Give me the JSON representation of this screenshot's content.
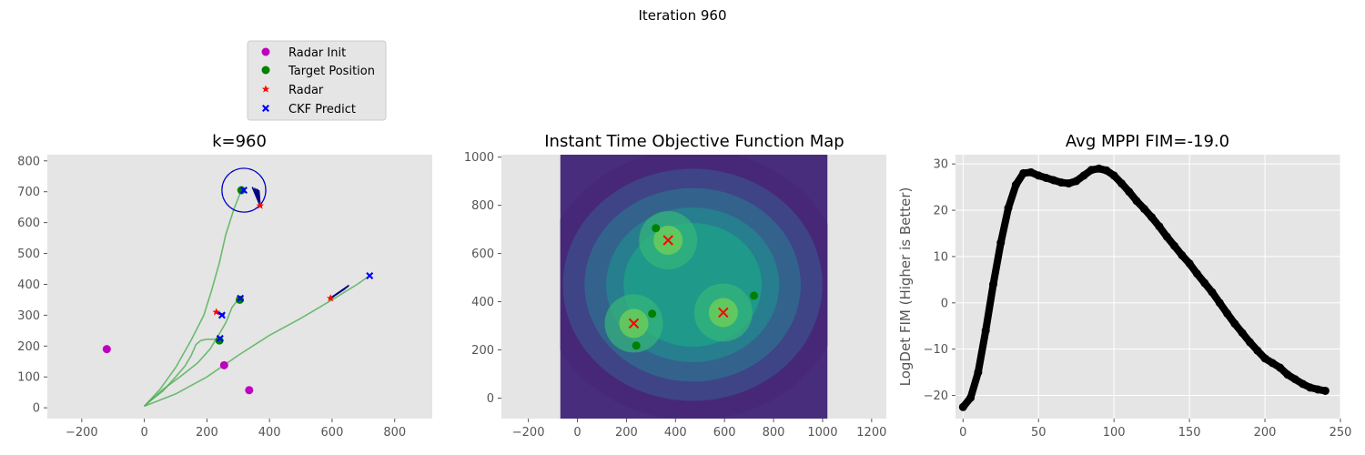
{
  "figure": {
    "suptitle": "Iteration 960"
  },
  "colors": {
    "axes_bg": "#e5e5e5",
    "grid": "#ffffff",
    "tick_text": "#555555",
    "radar_init": "#bf00bf",
    "target": "#008000",
    "radar": "#ff0000",
    "ckf": "#0000ff",
    "path": "#4caf50",
    "navy": "#000080",
    "fim": "#000000"
  },
  "legend": {
    "entries": [
      {
        "label": "Radar Init",
        "marker": "circle",
        "color": "#bf00bf"
      },
      {
        "label": "Target Position",
        "marker": "circle",
        "color": "#008000"
      },
      {
        "label": "Radar",
        "marker": "star",
        "color": "#ff0000"
      },
      {
        "label": "CKF Predict",
        "marker": "x-filled",
        "color": "#0000ff"
      }
    ]
  },
  "chart_data": [
    {
      "type": "scatter",
      "title": "k=960",
      "xlim": [
        -310,
        920
      ],
      "ylim": [
        -35,
        820
      ],
      "xticks": [
        -200,
        0,
        200,
        400,
        600,
        800
      ],
      "yticks": [
        0,
        100,
        200,
        300,
        400,
        500,
        600,
        700,
        800
      ],
      "grid": false,
      "radar_init": [
        [
          -120,
          190
        ],
        [
          255,
          138
        ],
        [
          335,
          57
        ]
      ],
      "target_position": [
        [
          310,
          705
        ],
        [
          305,
          350
        ],
        [
          240,
          218
        ]
      ],
      "radar": [
        [
          370,
          655
        ],
        [
          595,
          355
        ],
        [
          230,
          310
        ]
      ],
      "ckf_predict": [
        [
          318,
          705
        ],
        [
          307,
          355
        ],
        [
          242,
          225
        ],
        [
          720,
          428
        ],
        [
          248,
          300
        ]
      ],
      "trajectories": [
        [
          [
            0,
            5
          ],
          [
            50,
            60
          ],
          [
            100,
            130
          ],
          [
            150,
            220
          ],
          [
            190,
            300
          ],
          [
            215,
            380
          ],
          [
            240,
            470
          ],
          [
            260,
            560
          ],
          [
            285,
            640
          ],
          [
            310,
            705
          ]
        ],
        [
          [
            0,
            5
          ],
          [
            60,
            60
          ],
          [
            120,
            105
          ],
          [
            170,
            145
          ],
          [
            210,
            190
          ],
          [
            240,
            240
          ],
          [
            260,
            275
          ],
          [
            270,
            300
          ],
          [
            280,
            325
          ],
          [
            295,
            345
          ],
          [
            305,
            350
          ]
        ],
        [
          [
            10,
            15
          ],
          [
            60,
            55
          ],
          [
            100,
            100
          ],
          [
            130,
            135
          ],
          [
            150,
            170
          ],
          [
            165,
            205
          ],
          [
            180,
            218
          ],
          [
            200,
            222
          ],
          [
            225,
            222
          ],
          [
            240,
            218
          ]
        ],
        [
          [
            0,
            5
          ],
          [
            100,
            45
          ],
          [
            200,
            100
          ],
          [
            300,
            170
          ],
          [
            400,
            235
          ],
          [
            500,
            290
          ],
          [
            600,
            350
          ],
          [
            680,
            400
          ],
          [
            720,
            428
          ]
        ]
      ],
      "trajectory_end_labels": [],
      "circle": {
        "center": [
          318,
          705
        ],
        "radius": 70
      },
      "mppi_fans": [
        {
          "origin": [
            370,
            655
          ],
          "tips": [
            [
              345,
              715
            ],
            [
              352,
              712
            ],
            [
              358,
              710
            ],
            [
              362,
              708
            ],
            [
              366,
              705
            ]
          ]
        },
        {
          "origin": [
            595,
            355
          ],
          "tips": [
            [
              640,
              385
            ],
            [
              646,
              390
            ],
            [
              650,
              393
            ],
            [
              652,
              395
            ],
            [
              654,
              397
            ]
          ]
        },
        {
          "origin": [
            230,
            310
          ],
          "tips": [
            [
              250,
              300
            ],
            [
              252,
              298
            ],
            [
              254,
              296
            ],
            [
              256,
              301
            ]
          ]
        }
      ]
    },
    {
      "type": "heatmap",
      "title": "Instant Time Objective Function Map",
      "xlim": [
        -310,
        1260
      ],
      "ylim": [
        -85,
        1010
      ],
      "xticks": [
        -200,
        0,
        200,
        400,
        600,
        800,
        1000,
        1200
      ],
      "yticks": [
        0,
        200,
        400,
        600,
        800,
        1000
      ],
      "grid": false,
      "extent_x": [
        -70,
        1020
      ],
      "extent_y": [
        -85,
        1010
      ],
      "peaks": [
        [
          370,
          655
        ],
        [
          595,
          355
        ],
        [
          230,
          310
        ]
      ],
      "radar_x": [
        [
          370,
          655
        ],
        [
          595,
          355
        ],
        [
          230,
          310
        ]
      ],
      "targets": [
        [
          320,
          705
        ],
        [
          305,
          350
        ],
        [
          240,
          218
        ],
        [
          720,
          425
        ]
      ]
    },
    {
      "type": "line",
      "title": "Avg MPPI FIM=-19.0",
      "xlabel": "",
      "ylabel": "LogDet FIM (Higher is Better)",
      "xlim": [
        -5,
        250
      ],
      "ylim": [
        -25,
        32
      ],
      "xticks": [
        0,
        50,
        100,
        150,
        200,
        250
      ],
      "yticks": [
        -20,
        -10,
        0,
        10,
        20,
        30
      ],
      "grid": true,
      "series": [
        {
          "x": [
            0,
            5,
            10,
            15,
            20,
            25,
            30,
            35,
            40,
            45,
            50,
            55,
            60,
            65,
            70,
            75,
            80,
            85,
            90,
            95,
            100,
            105,
            110,
            115,
            120,
            125,
            130,
            135,
            140,
            145,
            150,
            155,
            160,
            165,
            170,
            175,
            180,
            185,
            190,
            195,
            200,
            205,
            210,
            215,
            220,
            225,
            230,
            235,
            240
          ],
          "y": [
            -22.5,
            -20.5,
            -15,
            -6,
            4,
            13,
            20.5,
            25.5,
            28,
            28.2,
            27.5,
            27,
            26.5,
            26,
            25.8,
            26.3,
            27.5,
            28.7,
            29,
            28.6,
            27.5,
            25.8,
            24,
            22,
            20.3,
            18.5,
            16.5,
            14.3,
            12.3,
            10.3,
            8.5,
            6.3,
            4.3,
            2.3,
            0,
            -2.3,
            -4.5,
            -6.5,
            -8.5,
            -10.3,
            -12,
            -13,
            -14,
            -15.5,
            -16.5,
            -17.5,
            -18.3,
            -18.7,
            -19
          ]
        }
      ]
    }
  ]
}
